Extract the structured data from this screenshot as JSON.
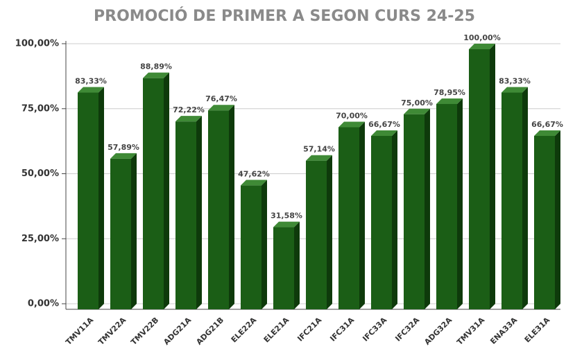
{
  "chart_data": {
    "type": "bar3d",
    "title": "PROMOCIÓ DE PRIMER A SEGON CURS 24-25",
    "categories": [
      "TMV11A",
      "TMV22A",
      "TMV22B",
      "ADG21A",
      "ADG21B",
      "ELE22A",
      "ELE21A",
      "IFC21A",
      "IFC31A",
      "IFC33A",
      "IFC32A",
      "ADG32A",
      "TMV31A",
      "ENA33A",
      "ELE31A"
    ],
    "values": [
      83.33,
      57.89,
      88.89,
      72.22,
      76.47,
      47.62,
      31.58,
      57.14,
      70.0,
      66.67,
      75.0,
      78.95,
      100.0,
      83.33,
      66.67
    ],
    "value_labels": [
      "83,33%",
      "57,89%",
      "88,89%",
      "72,22%",
      "76,47%",
      "47,62%",
      "31,58%",
      "57,14%",
      "70,00%",
      "66,67%",
      "75,00%",
      "78,95%",
      "100,00%",
      "83,33%",
      "66,67%"
    ],
    "color": "#1b5e16",
    "ylim": [
      0,
      100
    ],
    "yticks": [
      {
        "value": 0,
        "label": "0,00%"
      },
      {
        "value": 25,
        "label": "25,00%"
      },
      {
        "value": 50,
        "label": "50,00%"
      },
      {
        "value": 75,
        "label": "75,00%"
      },
      {
        "value": 100,
        "label": "100,00%"
      }
    ],
    "grid": true
  }
}
